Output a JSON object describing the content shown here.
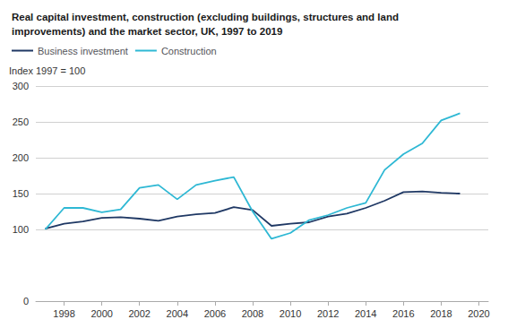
{
  "chart_data": {
    "type": "line",
    "title": "Real capital investment, construction (excluding buildings, structures and land\nimprovements) and the market sector, UK, 1997 to 2019",
    "ylabel": "Index 1997 = 100",
    "x": [
      1997,
      1998,
      1999,
      2000,
      2001,
      2002,
      2003,
      2004,
      2005,
      2006,
      2007,
      2008,
      2009,
      2010,
      2011,
      2012,
      2013,
      2014,
      2015,
      2016,
      2017,
      2018,
      2019
    ],
    "series": [
      {
        "name": "Business investment",
        "color": "#1f3864",
        "values": [
          101,
          108,
          111,
          116,
          117,
          115,
          112,
          118,
          121,
          123,
          131,
          127,
          105,
          108,
          110,
          118,
          122,
          130,
          140,
          152,
          153,
          151,
          150
        ]
      },
      {
        "name": "Construction",
        "color": "#2eb8d4",
        "values": [
          100,
          130,
          130,
          124,
          128,
          158,
          162,
          142,
          162,
          168,
          173,
          125,
          87,
          95,
          113,
          120,
          130,
          137,
          183,
          205,
          220,
          252,
          262
        ]
      }
    ],
    "xlim": [
      1996.5,
      2020.5
    ],
    "xticks": [
      1998,
      2000,
      2002,
      2004,
      2006,
      2008,
      2010,
      2012,
      2014,
      2016,
      2018,
      2020
    ],
    "ylim": [
      0,
      300
    ],
    "yticks": [
      0,
      100,
      150,
      200,
      250,
      300
    ],
    "grid": true,
    "legend": "upper left"
  }
}
